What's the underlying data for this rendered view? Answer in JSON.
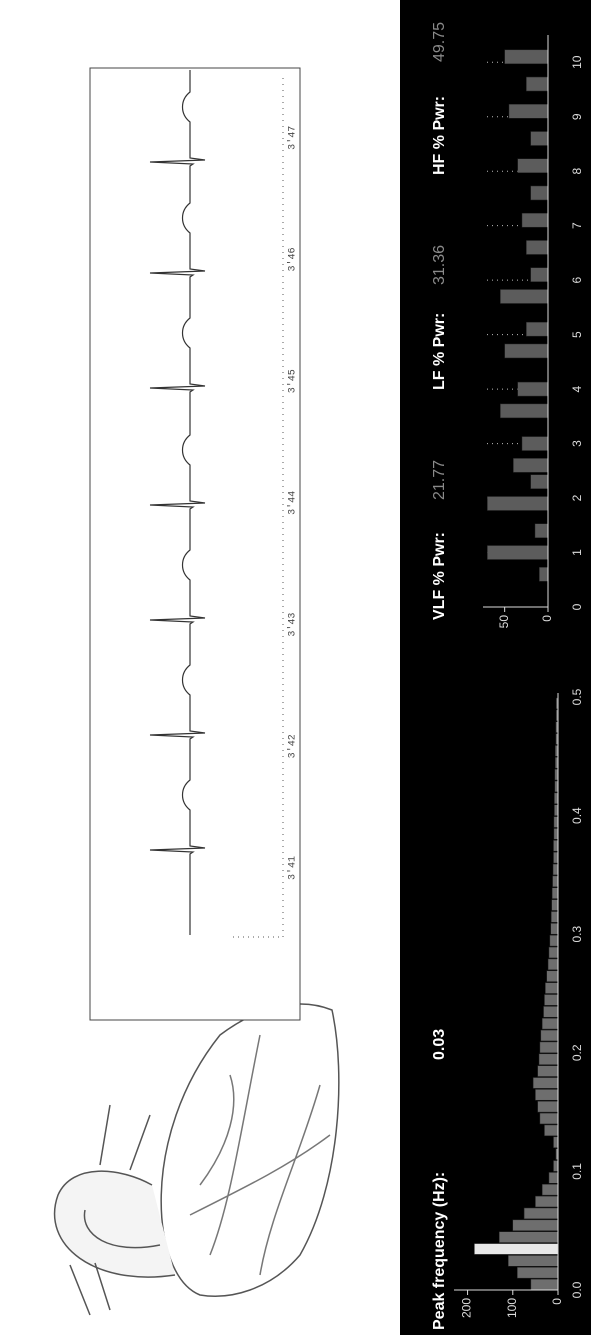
{
  "stats": {
    "peak": {
      "label": "Peak frequency (Hz):",
      "value": 0.03
    },
    "power": [
      {
        "label": "VLF % Pwr:",
        "value": 21.77
      },
      {
        "label": "LF % Pwr:",
        "value": 31.36
      },
      {
        "label": "HF % Pwr:",
        "value": 49.75
      }
    ]
  },
  "ecg": {
    "time_labels": [
      "3'41",
      "3'42",
      "3'43",
      "3'44",
      "3'45",
      "3'46",
      "3'47"
    ]
  },
  "chart_data": [
    {
      "type": "bar",
      "x": [
        0,
        0.01,
        0.02,
        0.03,
        0.04,
        0.05,
        0.06,
        0.07,
        0.08,
        0.09,
        0.1,
        0.11,
        0.12,
        0.13,
        0.14,
        0.15,
        0.16,
        0.17,
        0.18,
        0.19,
        0.2,
        0.21,
        0.22,
        0.23,
        0.24,
        0.25,
        0.26,
        0.27,
        0.28,
        0.29,
        0.3,
        0.31,
        0.32,
        0.33,
        0.34,
        0.35,
        0.36,
        0.37,
        0.38,
        0.39,
        0.4,
        0.41,
        0.42,
        0.43,
        0.44,
        0.45,
        0.46,
        0.47,
        0.48,
        0.49
      ],
      "values": [
        60,
        90,
        110,
        185,
        130,
        100,
        75,
        50,
        35,
        20,
        10,
        5,
        10,
        30,
        40,
        45,
        50,
        55,
        45,
        42,
        40,
        38,
        35,
        32,
        30,
        28,
        25,
        22,
        20,
        18,
        16,
        15,
        14,
        13,
        12,
        11,
        10,
        10,
        9,
        9,
        8,
        8,
        7,
        7,
        6,
        6,
        5,
        5,
        4,
        4
      ],
      "color": "#6e6e6e",
      "highlight_color": "#e8e8e8",
      "xlim": [
        0,
        0.5
      ],
      "xticks": [
        {
          "value": 0,
          "label": "0.0"
        },
        0.1,
        0.2,
        0.3,
        0.4,
        0.5
      ],
      "ylim": [
        0,
        230
      ],
      "yticks": [
        0,
        100,
        200
      ]
    },
    {
      "type": "bar",
      "x": [
        0.6,
        1.0,
        1.4,
        1.9,
        2.3,
        2.6,
        3.0,
        3.6,
        4.0,
        4.7,
        5.1,
        5.7,
        6.1,
        6.6,
        7.1,
        7.6,
        8.1,
        8.6,
        9.1,
        9.6,
        10.1
      ],
      "values": [
        10,
        70,
        15,
        70,
        20,
        40,
        30,
        55,
        35,
        50,
        25,
        55,
        20,
        25,
        30,
        20,
        35,
        20,
        45,
        25,
        50
      ],
      "color": "#5c5c5c",
      "xlim": [
        0,
        10.5
      ],
      "xticks": [
        0,
        1,
        2,
        3,
        4,
        5,
        6,
        7,
        8,
        9,
        10
      ],
      "ylim": [
        0,
        75
      ],
      "yticks": [
        0,
        50
      ],
      "grid": true
    }
  ]
}
